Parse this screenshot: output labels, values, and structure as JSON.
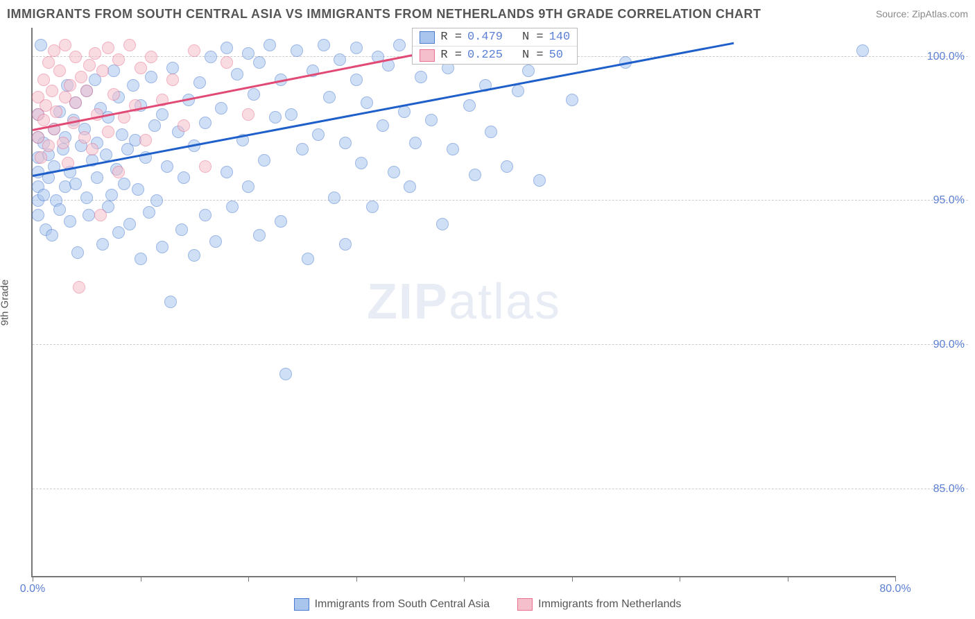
{
  "title": "IMMIGRANTS FROM SOUTH CENTRAL ASIA VS IMMIGRANTS FROM NETHERLANDS 9TH GRADE CORRELATION CHART",
  "source_label": "Source: ZipAtlas.com",
  "watermark_zip": "ZIP",
  "watermark_atlas": "atlas",
  "y_axis_title": "9th Grade",
  "chart": {
    "type": "scatter",
    "xlim": [
      0,
      80
    ],
    "ylim": [
      82,
      101
    ],
    "x_ticks": [
      0,
      10,
      20,
      30,
      40,
      50,
      60,
      70,
      80
    ],
    "x_tick_labels": {
      "0": "0.0%",
      "80": "80.0%"
    },
    "y_ticks": [
      85,
      90,
      95,
      100
    ],
    "y_tick_labels": {
      "85": "85.0%",
      "90": "90.0%",
      "95": "95.0%",
      "100": "100.0%"
    },
    "background_color": "#ffffff",
    "grid_color": "#cccccc",
    "marker_radius": 9,
    "marker_opacity": 0.55,
    "series": [
      {
        "name": "Immigrants from South Central Asia",
        "fill_color": "#a9c5ed",
        "stroke_color": "#4a7bd0",
        "trend_color": "#1e5fc9",
        "R": "0.479",
        "N": "140",
        "trend_x1": 0,
        "trend_y1": 95.9,
        "trend_x2": 65,
        "trend_y2": 100.5,
        "points": [
          [
            0.5,
            94.5
          ],
          [
            0.5,
            95.0
          ],
          [
            0.5,
            95.5
          ],
          [
            0.5,
            96.0
          ],
          [
            0.5,
            96.5
          ],
          [
            0.5,
            97.2
          ],
          [
            0.5,
            98.0
          ],
          [
            0.8,
            100.4
          ],
          [
            1.0,
            95.2
          ],
          [
            1.0,
            97.0
          ],
          [
            1.2,
            94.0
          ],
          [
            1.5,
            95.8
          ],
          [
            1.5,
            96.6
          ],
          [
            1.8,
            93.8
          ],
          [
            2.0,
            96.2
          ],
          [
            2.0,
            97.5
          ],
          [
            2.2,
            95.0
          ],
          [
            2.5,
            98.1
          ],
          [
            2.5,
            94.7
          ],
          [
            2.8,
            96.8
          ],
          [
            3.0,
            97.2
          ],
          [
            3.0,
            95.5
          ],
          [
            3.2,
            99.0
          ],
          [
            3.5,
            94.3
          ],
          [
            3.5,
            96.0
          ],
          [
            3.8,
            97.8
          ],
          [
            4.0,
            95.6
          ],
          [
            4.0,
            98.4
          ],
          [
            4.2,
            93.2
          ],
          [
            4.5,
            96.9
          ],
          [
            4.8,
            97.5
          ],
          [
            5.0,
            95.1
          ],
          [
            5.0,
            98.8
          ],
          [
            5.2,
            94.5
          ],
          [
            5.5,
            96.4
          ],
          [
            5.8,
            99.2
          ],
          [
            6.0,
            97.0
          ],
          [
            6.0,
            95.8
          ],
          [
            6.3,
            98.2
          ],
          [
            6.5,
            93.5
          ],
          [
            6.8,
            96.6
          ],
          [
            7.0,
            94.8
          ],
          [
            7.0,
            97.9
          ],
          [
            7.3,
            95.2
          ],
          [
            7.5,
            99.5
          ],
          [
            7.8,
            96.1
          ],
          [
            8.0,
            93.9
          ],
          [
            8.0,
            98.6
          ],
          [
            8.3,
            97.3
          ],
          [
            8.5,
            95.6
          ],
          [
            8.8,
            96.8
          ],
          [
            9.0,
            94.2
          ],
          [
            9.3,
            99.0
          ],
          [
            9.5,
            97.1
          ],
          [
            9.8,
            95.4
          ],
          [
            10.0,
            98.3
          ],
          [
            10.0,
            93.0
          ],
          [
            10.5,
            96.5
          ],
          [
            10.8,
            94.6
          ],
          [
            11.0,
            99.3
          ],
          [
            11.3,
            97.6
          ],
          [
            11.5,
            95.0
          ],
          [
            12.0,
            93.4
          ],
          [
            12.0,
            98.0
          ],
          [
            12.5,
            96.2
          ],
          [
            12.8,
            91.5
          ],
          [
            13.0,
            99.6
          ],
          [
            13.5,
            97.4
          ],
          [
            13.8,
            94.0
          ],
          [
            14.0,
            95.8
          ],
          [
            14.5,
            98.5
          ],
          [
            15.0,
            93.1
          ],
          [
            15.0,
            96.9
          ],
          [
            15.5,
            99.1
          ],
          [
            16.0,
            94.5
          ],
          [
            16.0,
            97.7
          ],
          [
            16.5,
            100.0
          ],
          [
            17.0,
            93.6
          ],
          [
            17.5,
            98.2
          ],
          [
            18.0,
            96.0
          ],
          [
            18.0,
            100.3
          ],
          [
            18.5,
            94.8
          ],
          [
            19.0,
            99.4
          ],
          [
            19.5,
            97.1
          ],
          [
            20.0,
            100.1
          ],
          [
            20.0,
            95.5
          ],
          [
            20.5,
            98.7
          ],
          [
            21.0,
            93.8
          ],
          [
            21.0,
            99.8
          ],
          [
            21.5,
            96.4
          ],
          [
            22.0,
            100.4
          ],
          [
            22.5,
            97.9
          ],
          [
            23.0,
            94.3
          ],
          [
            23.0,
            99.2
          ],
          [
            23.5,
            89.0
          ],
          [
            24.0,
            98.0
          ],
          [
            24.5,
            100.2
          ],
          [
            25.0,
            96.8
          ],
          [
            25.5,
            93.0
          ],
          [
            26.0,
            99.5
          ],
          [
            26.5,
            97.3
          ],
          [
            27.0,
            100.4
          ],
          [
            27.5,
            98.6
          ],
          [
            28.0,
            95.1
          ],
          [
            28.5,
            99.9
          ],
          [
            29.0,
            97.0
          ],
          [
            29.0,
            93.5
          ],
          [
            30.0,
            99.2
          ],
          [
            30.0,
            100.3
          ],
          [
            30.5,
            96.3
          ],
          [
            31.0,
            98.4
          ],
          [
            31.5,
            94.8
          ],
          [
            32.0,
            100.0
          ],
          [
            32.5,
            97.6
          ],
          [
            33.0,
            99.7
          ],
          [
            33.5,
            96.0
          ],
          [
            34.0,
            100.4
          ],
          [
            34.5,
            98.1
          ],
          [
            35.0,
            95.5
          ],
          [
            35.5,
            97.0
          ],
          [
            36.0,
            99.3
          ],
          [
            36.5,
            100.2
          ],
          [
            37.0,
            97.8
          ],
          [
            38.0,
            94.2
          ],
          [
            38.5,
            99.6
          ],
          [
            39.0,
            96.8
          ],
          [
            40.0,
            100.1
          ],
          [
            40.5,
            98.3
          ],
          [
            41.0,
            95.9
          ],
          [
            42.0,
            99.0
          ],
          [
            42.5,
            97.4
          ],
          [
            43.0,
            100.4
          ],
          [
            44.0,
            96.2
          ],
          [
            45.0,
            98.8
          ],
          [
            46.0,
            99.5
          ],
          [
            47.0,
            95.7
          ],
          [
            48.0,
            100.0
          ],
          [
            50.0,
            98.5
          ],
          [
            55.0,
            99.8
          ],
          [
            77.0,
            100.2
          ]
        ]
      },
      {
        "name": "Immigrants from Netherlands",
        "fill_color": "#f5c0cc",
        "stroke_color": "#e8718f",
        "trend_color": "#e14a75",
        "R": "0.225",
        "N": " 50",
        "trend_x1": 0,
        "trend_y1": 97.5,
        "trend_x2": 38,
        "trend_y2": 100.3,
        "points": [
          [
            0.5,
            97.2
          ],
          [
            0.5,
            98.0
          ],
          [
            0.5,
            98.6
          ],
          [
            0.8,
            96.5
          ],
          [
            1.0,
            99.2
          ],
          [
            1.0,
            97.8
          ],
          [
            1.2,
            98.3
          ],
          [
            1.5,
            99.8
          ],
          [
            1.5,
            96.9
          ],
          [
            1.8,
            98.8
          ],
          [
            2.0,
            97.5
          ],
          [
            2.0,
            100.2
          ],
          [
            2.2,
            98.1
          ],
          [
            2.5,
            99.5
          ],
          [
            2.8,
            97.0
          ],
          [
            3.0,
            98.6
          ],
          [
            3.0,
            100.4
          ],
          [
            3.3,
            96.3
          ],
          [
            3.5,
            99.0
          ],
          [
            3.8,
            97.7
          ],
          [
            4.0,
            98.4
          ],
          [
            4.0,
            100.0
          ],
          [
            4.3,
            92.0
          ],
          [
            4.5,
            99.3
          ],
          [
            4.8,
            97.2
          ],
          [
            5.0,
            98.8
          ],
          [
            5.3,
            99.7
          ],
          [
            5.5,
            96.8
          ],
          [
            5.8,
            100.1
          ],
          [
            6.0,
            98.0
          ],
          [
            6.3,
            94.5
          ],
          [
            6.5,
            99.5
          ],
          [
            7.0,
            97.4
          ],
          [
            7.0,
            100.3
          ],
          [
            7.5,
            98.7
          ],
          [
            8.0,
            96.0
          ],
          [
            8.0,
            99.9
          ],
          [
            8.5,
            97.9
          ],
          [
            9.0,
            100.4
          ],
          [
            9.5,
            98.3
          ],
          [
            10.0,
            99.6
          ],
          [
            10.5,
            97.1
          ],
          [
            11.0,
            100.0
          ],
          [
            12.0,
            98.5
          ],
          [
            13.0,
            99.2
          ],
          [
            14.0,
            97.6
          ],
          [
            15.0,
            100.2
          ],
          [
            16.0,
            96.2
          ],
          [
            18.0,
            99.8
          ],
          [
            20.0,
            98.0
          ]
        ]
      }
    ],
    "legend_template": {
      "r_prefix": "R = ",
      "n_prefix": "N = "
    }
  }
}
